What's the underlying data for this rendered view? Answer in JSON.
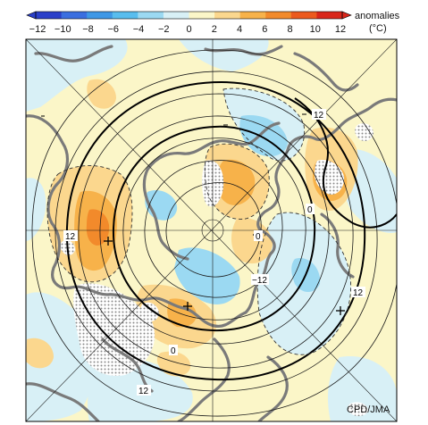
{
  "colorbar": {
    "ticks": [
      "−12",
      "−10",
      "−8",
      "−6",
      "−4",
      "−2",
      "0",
      "2",
      "4",
      "6",
      "8",
      "10",
      "12"
    ],
    "title_line1": "anomalies",
    "title_line2": "(°C)",
    "colors": [
      "#2a3fc9",
      "#3b6fe0",
      "#3f98e6",
      "#58bdee",
      "#9bd9f2",
      "#d8f0f6",
      "#fbf6c8",
      "#fbd78e",
      "#f7b24a",
      "#f28a2b",
      "#ec5a1e",
      "#d9261a"
    ]
  },
  "map": {
    "contour_labels": [
      "12",
      "0",
      "12",
      "−12",
      "0",
      "12",
      "12",
      "0"
    ],
    "credit": "CPD/JMA"
  }
}
